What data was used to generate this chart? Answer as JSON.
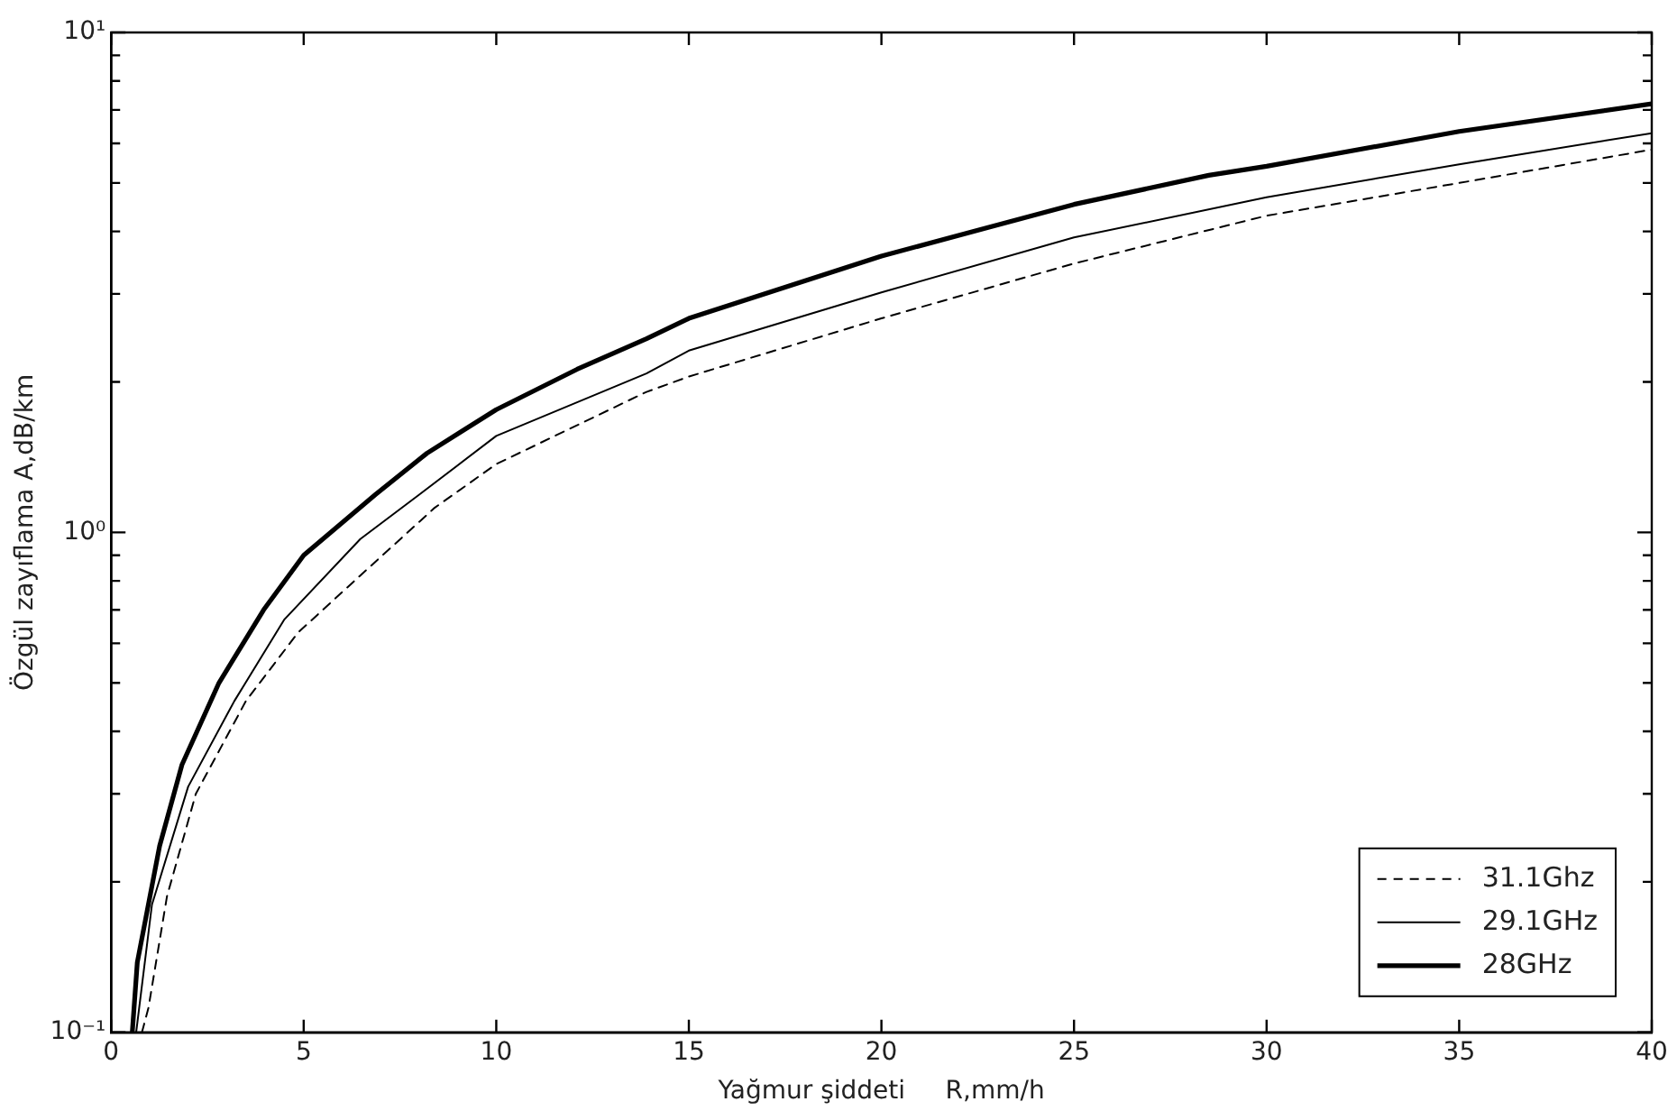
{
  "chart_data": {
    "type": "line",
    "xlabel": "Yağmur şiddeti     R,mm/h",
    "ylabel": "Özgül zayıflama A,dB/km",
    "xlim": [
      0,
      40
    ],
    "xticks": [
      0,
      5,
      10,
      15,
      20,
      25,
      30,
      35,
      40
    ],
    "ylim": [
      0.1,
      10
    ],
    "yticks": [
      {
        "value": 0.1,
        "label": "10⁻¹"
      },
      {
        "value": 0.2,
        "label": null
      },
      {
        "value": 0.3,
        "label": null
      },
      {
        "value": 0.4,
        "label": null
      },
      {
        "value": 0.5,
        "label": null
      },
      {
        "value": 0.6,
        "label": null
      },
      {
        "value": 0.7,
        "label": null
      },
      {
        "value": 0.8,
        "label": null
      },
      {
        "value": 0.9,
        "label": null
      },
      {
        "value": 1,
        "label": "10⁰"
      },
      {
        "value": 2,
        "label": null
      },
      {
        "value": 3,
        "label": null
      },
      {
        "value": 4,
        "label": null
      },
      {
        "value": 5,
        "label": null
      },
      {
        "value": 6,
        "label": null
      },
      {
        "value": 7,
        "label": null
      },
      {
        "value": 8,
        "label": null
      },
      {
        "value": 9,
        "label": null
      },
      {
        "value": 10,
        "label": "10¹"
      }
    ],
    "log": "y",
    "grid": false,
    "legend": "bottom right",
    "marker": "none",
    "series": [
      {
        "name": "31.1Ghz",
        "color": "#000000",
        "line_style": "dashed",
        "x": [
          0.8,
          0.97,
          1.45,
          2.2,
          3.5,
          4.85,
          6.47,
          8.4,
          10,
          13.9,
          15,
          20,
          25,
          30,
          35,
          40
        ],
        "values": [
          0.1,
          0.112,
          0.187,
          0.3,
          0.46,
          0.63,
          0.82,
          1.12,
          1.37,
          1.91,
          2.05,
          2.68,
          3.45,
          4.3,
          5.0,
          5.83
        ]
      },
      {
        "name": "29.1GHz",
        "color": "#000000",
        "line_style": "solid",
        "x": [
          0.65,
          1.06,
          2.0,
          3.2,
          4.5,
          6.47,
          8.0,
          10,
          13.9,
          15,
          20,
          25,
          30,
          35,
          40
        ],
        "values": [
          0.1,
          0.18,
          0.31,
          0.46,
          0.67,
          0.97,
          1.19,
          1.56,
          2.08,
          2.31,
          3.02,
          3.89,
          4.68,
          5.45,
          6.29
        ]
      },
      {
        "name": "28GHz",
        "color": "#000000",
        "line_style": "solid",
        "x": [
          0.55,
          0.68,
          1.26,
          1.84,
          2.8,
          3.96,
          5.0,
          6.86,
          8.2,
          10,
          12.1,
          13.9,
          15,
          20,
          25,
          28.5,
          30,
          35,
          40
        ],
        "values": [
          0.1,
          0.138,
          0.236,
          0.343,
          0.5,
          0.7,
          0.9,
          1.19,
          1.44,
          1.76,
          2.12,
          2.44,
          2.68,
          3.57,
          4.53,
          5.18,
          5.4,
          6.34,
          7.2
        ]
      }
    ]
  }
}
